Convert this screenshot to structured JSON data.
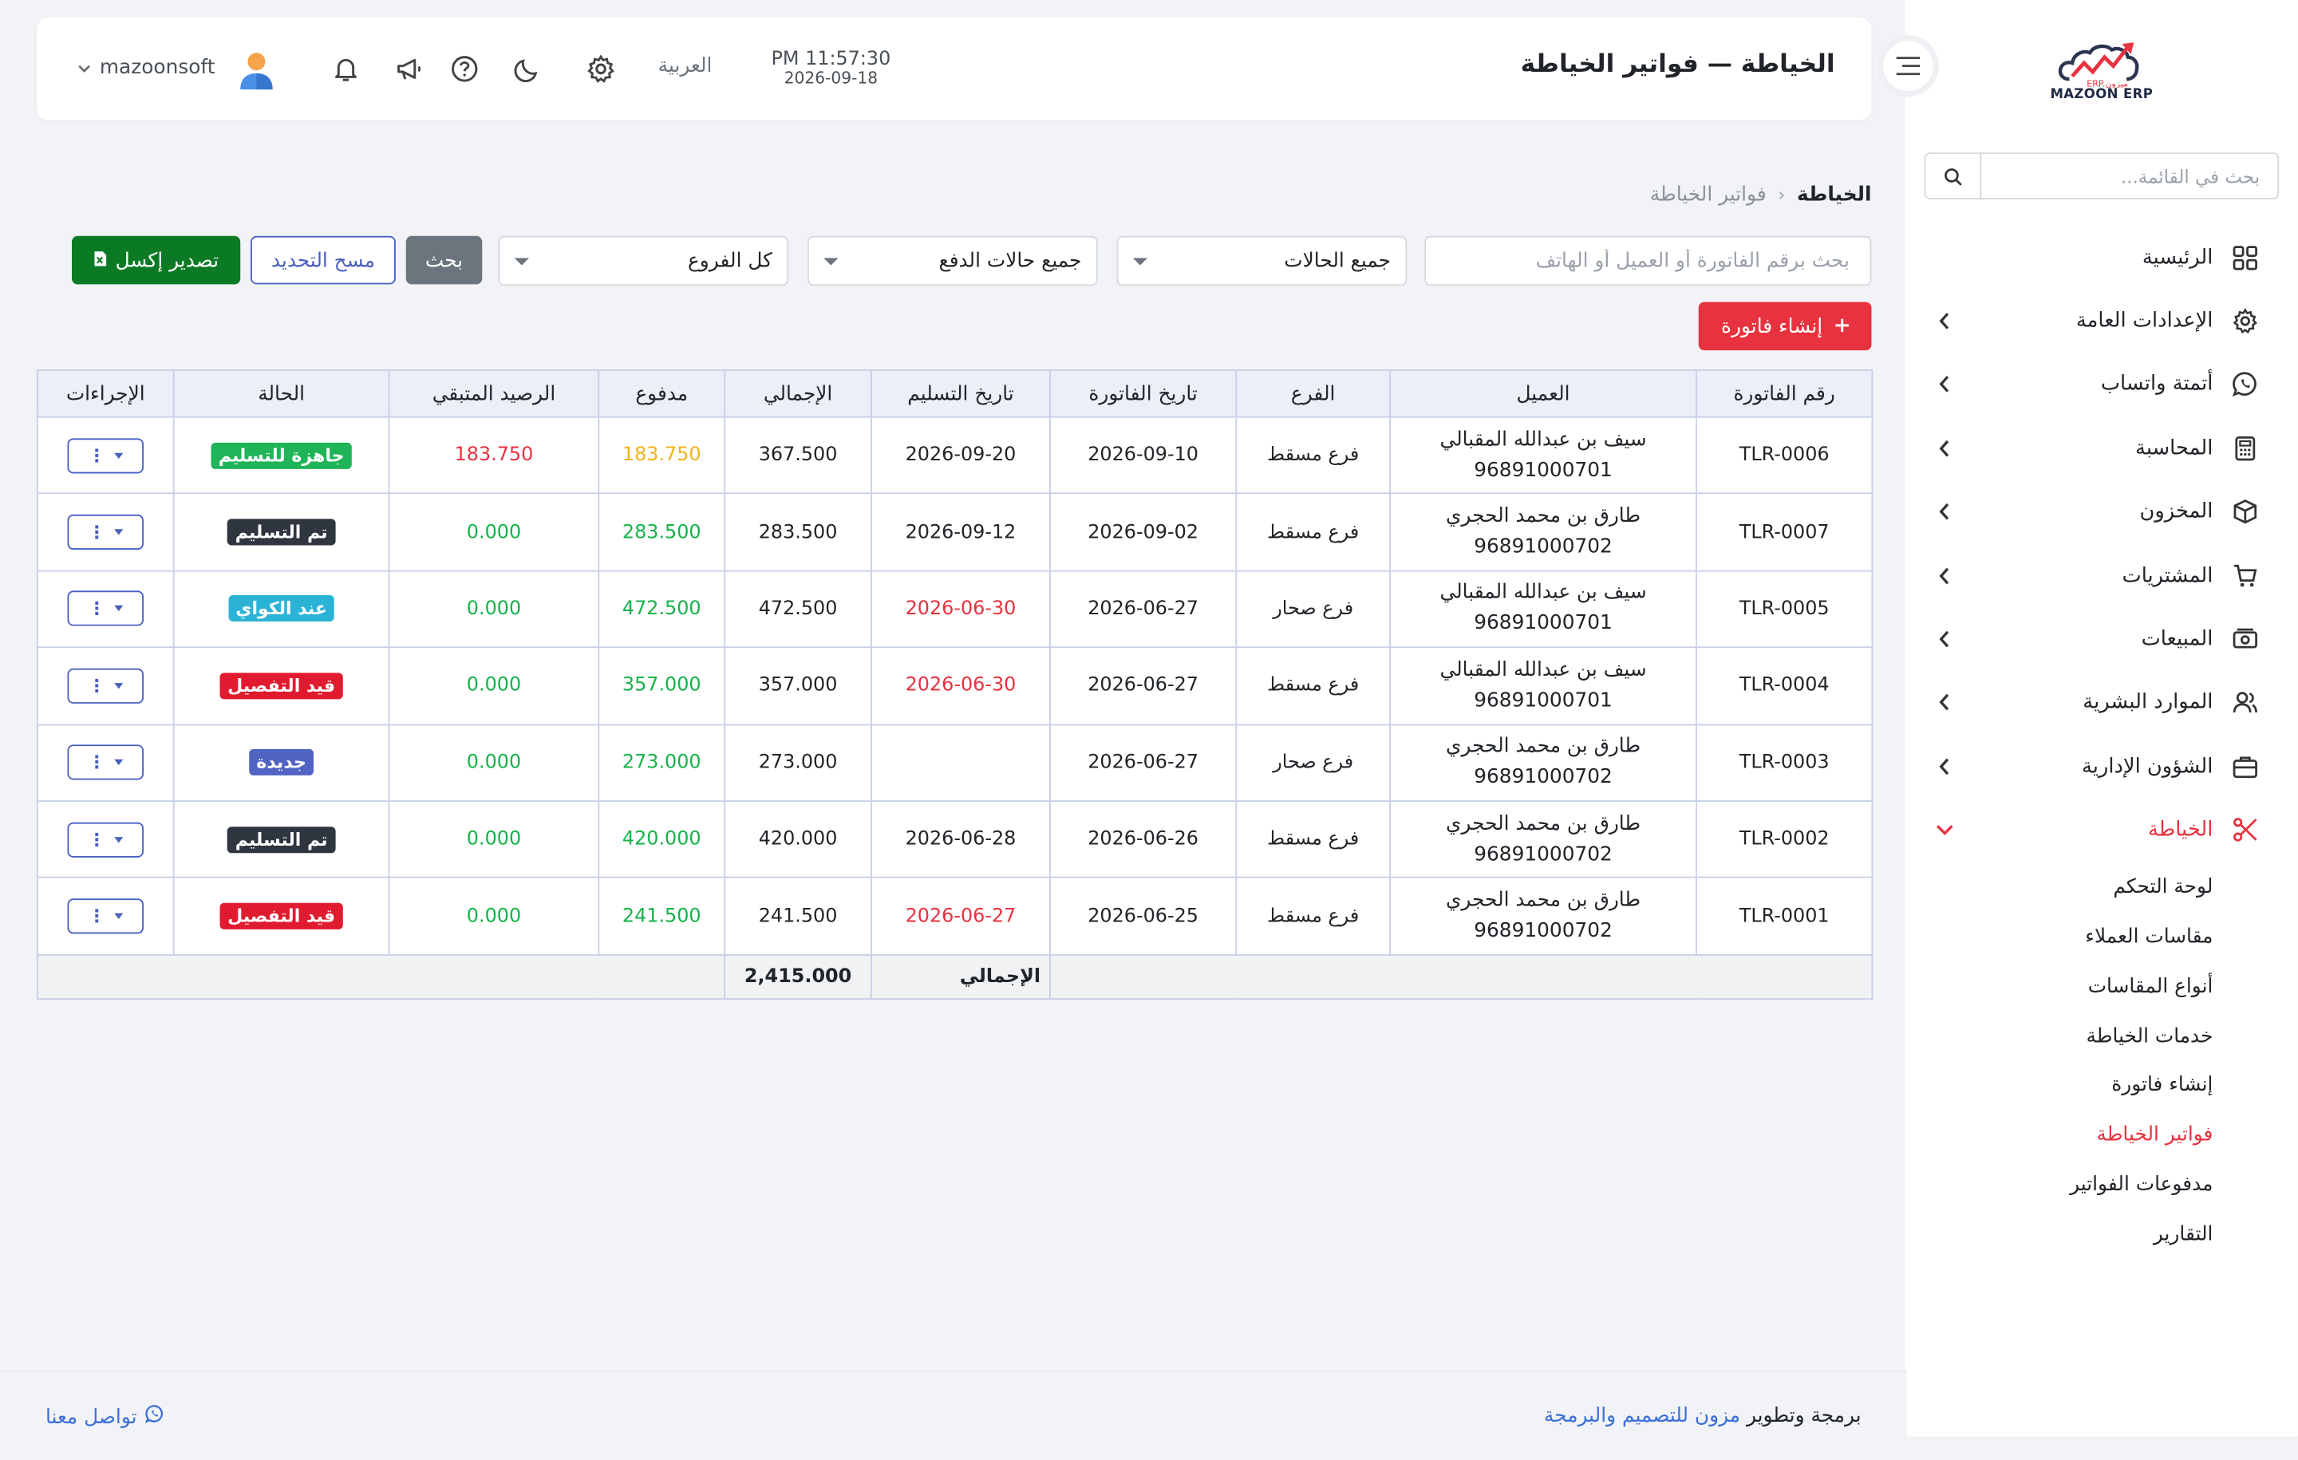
{
  "header": {
    "title": "الخياطة — فواتير الخياطة",
    "time": "PM 11:57:30",
    "date": "2026-09-18",
    "language": "العربية",
    "username": "mazoonsoft",
    "icons": [
      "menu-toggle-icon",
      "gear-icon",
      "moon-icon",
      "help-icon",
      "megaphone-icon",
      "bell-icon",
      "avatar",
      "chevron-down-icon"
    ]
  },
  "sidebar": {
    "logo_text": "MAZOON ERP",
    "logo_small": "ERP.ميزون",
    "search_placeholder": "بحث في القائمة...",
    "items": [
      {
        "label": "الرئيسية",
        "icon": "grid-icon"
      },
      {
        "label": "الإعدادات العامة",
        "icon": "gear-icon"
      },
      {
        "label": "أتمتة واتساب",
        "icon": "whatsapp-icon"
      },
      {
        "label": "المحاسبة",
        "icon": "calculator-icon"
      },
      {
        "label": "المخزون",
        "icon": "box-icon"
      },
      {
        "label": "المشتريات",
        "icon": "cart-icon"
      },
      {
        "label": "المبيعات",
        "icon": "cash-icon"
      },
      {
        "label": "الموارد البشرية",
        "icon": "users-icon"
      },
      {
        "label": "الشؤون الإدارية",
        "icon": "briefcase-icon"
      },
      {
        "label": "الخياطة",
        "icon": "scissors-icon"
      }
    ],
    "active_item": "الخياطة",
    "sub_items": [
      {
        "label": "لوحة التحكم"
      },
      {
        "label": "مقاسات العملاء"
      },
      {
        "label": "أنواع المقاسات"
      },
      {
        "label": "خدمات الخياطة"
      },
      {
        "label": "إنشاء فاتورة"
      },
      {
        "label": "فواتير الخياطة"
      },
      {
        "label": "مدفوعات الفواتير"
      },
      {
        "label": "التقارير"
      }
    ],
    "active_sub": "فواتير الخياطة"
  },
  "breadcrumb": {
    "root": "الخياطة",
    "separator": "‹",
    "current": "فواتير الخياطة"
  },
  "filters": {
    "search_placeholder": "بحث برقم الفاتورة أو العميل أو الهاتف",
    "status_value": "جميع الحالات",
    "payment_value": "جميع حالات الدفع",
    "branch_value": "كل الفروع",
    "search_button": "بحث",
    "clear_button": "مسح التحديد",
    "export_button": "تصدير إكسل"
  },
  "create_button": "إنشاء فاتورة",
  "table": {
    "headers": [
      "رقم الفاتورة",
      "العميل",
      "الفرع",
      "تاريخ الفاتورة",
      "تاريخ التسليم",
      "الإجمالي",
      "مدفوع",
      "الرصيد المتبقي",
      "الحالة",
      "الإجراءات"
    ],
    "rows": [
      {
        "invoice": "TLR-0006",
        "customer": "سيف بن عبدالله المقبالي",
        "phone": "96891000701",
        "branch": "فرع مسقط",
        "inv_date": "2026-09-10",
        "delivery": "2026-09-20",
        "delivery_overdue": false,
        "total": "367.500",
        "paid": "183.750",
        "paid_color": "orange",
        "balance": "183.750",
        "balance_color": "red",
        "status": "جاهزة للتسليم",
        "status_color": "#1fb457",
        "actions_icon": "kebab-icon"
      },
      {
        "invoice": "TLR-0007",
        "customer": "طارق بن محمد الحجري",
        "phone": "96891000702",
        "branch": "فرع مسقط",
        "inv_date": "2026-09-02",
        "delivery": "2026-09-12",
        "delivery_overdue": false,
        "total": "283.500",
        "paid": "283.500",
        "paid_color": "green",
        "balance": "0.000",
        "balance_color": "green",
        "status": "تم التسليم",
        "status_color": "#2f3640",
        "actions_icon": "kebab-icon"
      },
      {
        "invoice": "TLR-0005",
        "customer": "سيف بن عبدالله المقبالي",
        "phone": "96891000701",
        "branch": "فرع صحار",
        "inv_date": "2026-06-27",
        "delivery": "2026-06-30",
        "delivery_overdue": true,
        "total": "472.500",
        "paid": "472.500",
        "paid_color": "green",
        "balance": "0.000",
        "balance_color": "green",
        "status": "عند الكواي",
        "status_color": "#2bb3d6",
        "actions_icon": "kebab-icon"
      },
      {
        "invoice": "TLR-0004",
        "customer": "سيف بن عبدالله المقبالي",
        "phone": "96891000701",
        "branch": "فرع مسقط",
        "inv_date": "2026-06-27",
        "delivery": "2026-06-30",
        "delivery_overdue": true,
        "total": "357.000",
        "paid": "357.000",
        "paid_color": "green",
        "balance": "0.000",
        "balance_color": "green",
        "status": "قيد التفصيل",
        "status_color": "#e01b2f",
        "actions_icon": "kebab-icon"
      },
      {
        "invoice": "TLR-0003",
        "customer": "طارق بن محمد الحجري",
        "phone": "96891000702",
        "branch": "فرع صحار",
        "inv_date": "2026-06-27",
        "delivery": "",
        "delivery_overdue": false,
        "total": "273.000",
        "paid": "273.000",
        "paid_color": "green",
        "balance": "0.000",
        "balance_color": "green",
        "status": "جديدة",
        "status_color": "#5164c3",
        "actions_icon": "kebab-icon"
      },
      {
        "invoice": "TLR-0002",
        "customer": "طارق بن محمد الحجري",
        "phone": "96891000702",
        "branch": "فرع مسقط",
        "inv_date": "2026-06-26",
        "delivery": "2026-06-28",
        "delivery_overdue": false,
        "total": "420.000",
        "paid": "420.000",
        "paid_color": "green",
        "balance": "0.000",
        "balance_color": "green",
        "status": "تم التسليم",
        "status_color": "#2f3640",
        "actions_icon": "kebab-icon"
      },
      {
        "invoice": "TLR-0001",
        "customer": "طارق بن محمد الحجري",
        "phone": "96891000702",
        "branch": "فرع مسقط",
        "inv_date": "2026-06-25",
        "delivery": "2026-06-27",
        "delivery_overdue": true,
        "total": "241.500",
        "paid": "241.500",
        "paid_color": "green",
        "balance": "0.000",
        "balance_color": "green",
        "status": "قيد التفصيل",
        "status_color": "#e01b2f",
        "actions_icon": "kebab-icon"
      }
    ],
    "footer_label": "الإجمالي",
    "footer_total": "2,415.000"
  },
  "footer": {
    "credit_prefix": "برمجة وتطوير",
    "credit_company": "مزون للتصميم والبرمجة",
    "contact": "تواصل معنا",
    "contact_icon": "whatsapp-icon"
  },
  "colors": {
    "accent_red": "#e8323f",
    "export_green": "#0b7a24",
    "link_blue": "#3b6fd9",
    "table_border": "#c8cfe8"
  }
}
